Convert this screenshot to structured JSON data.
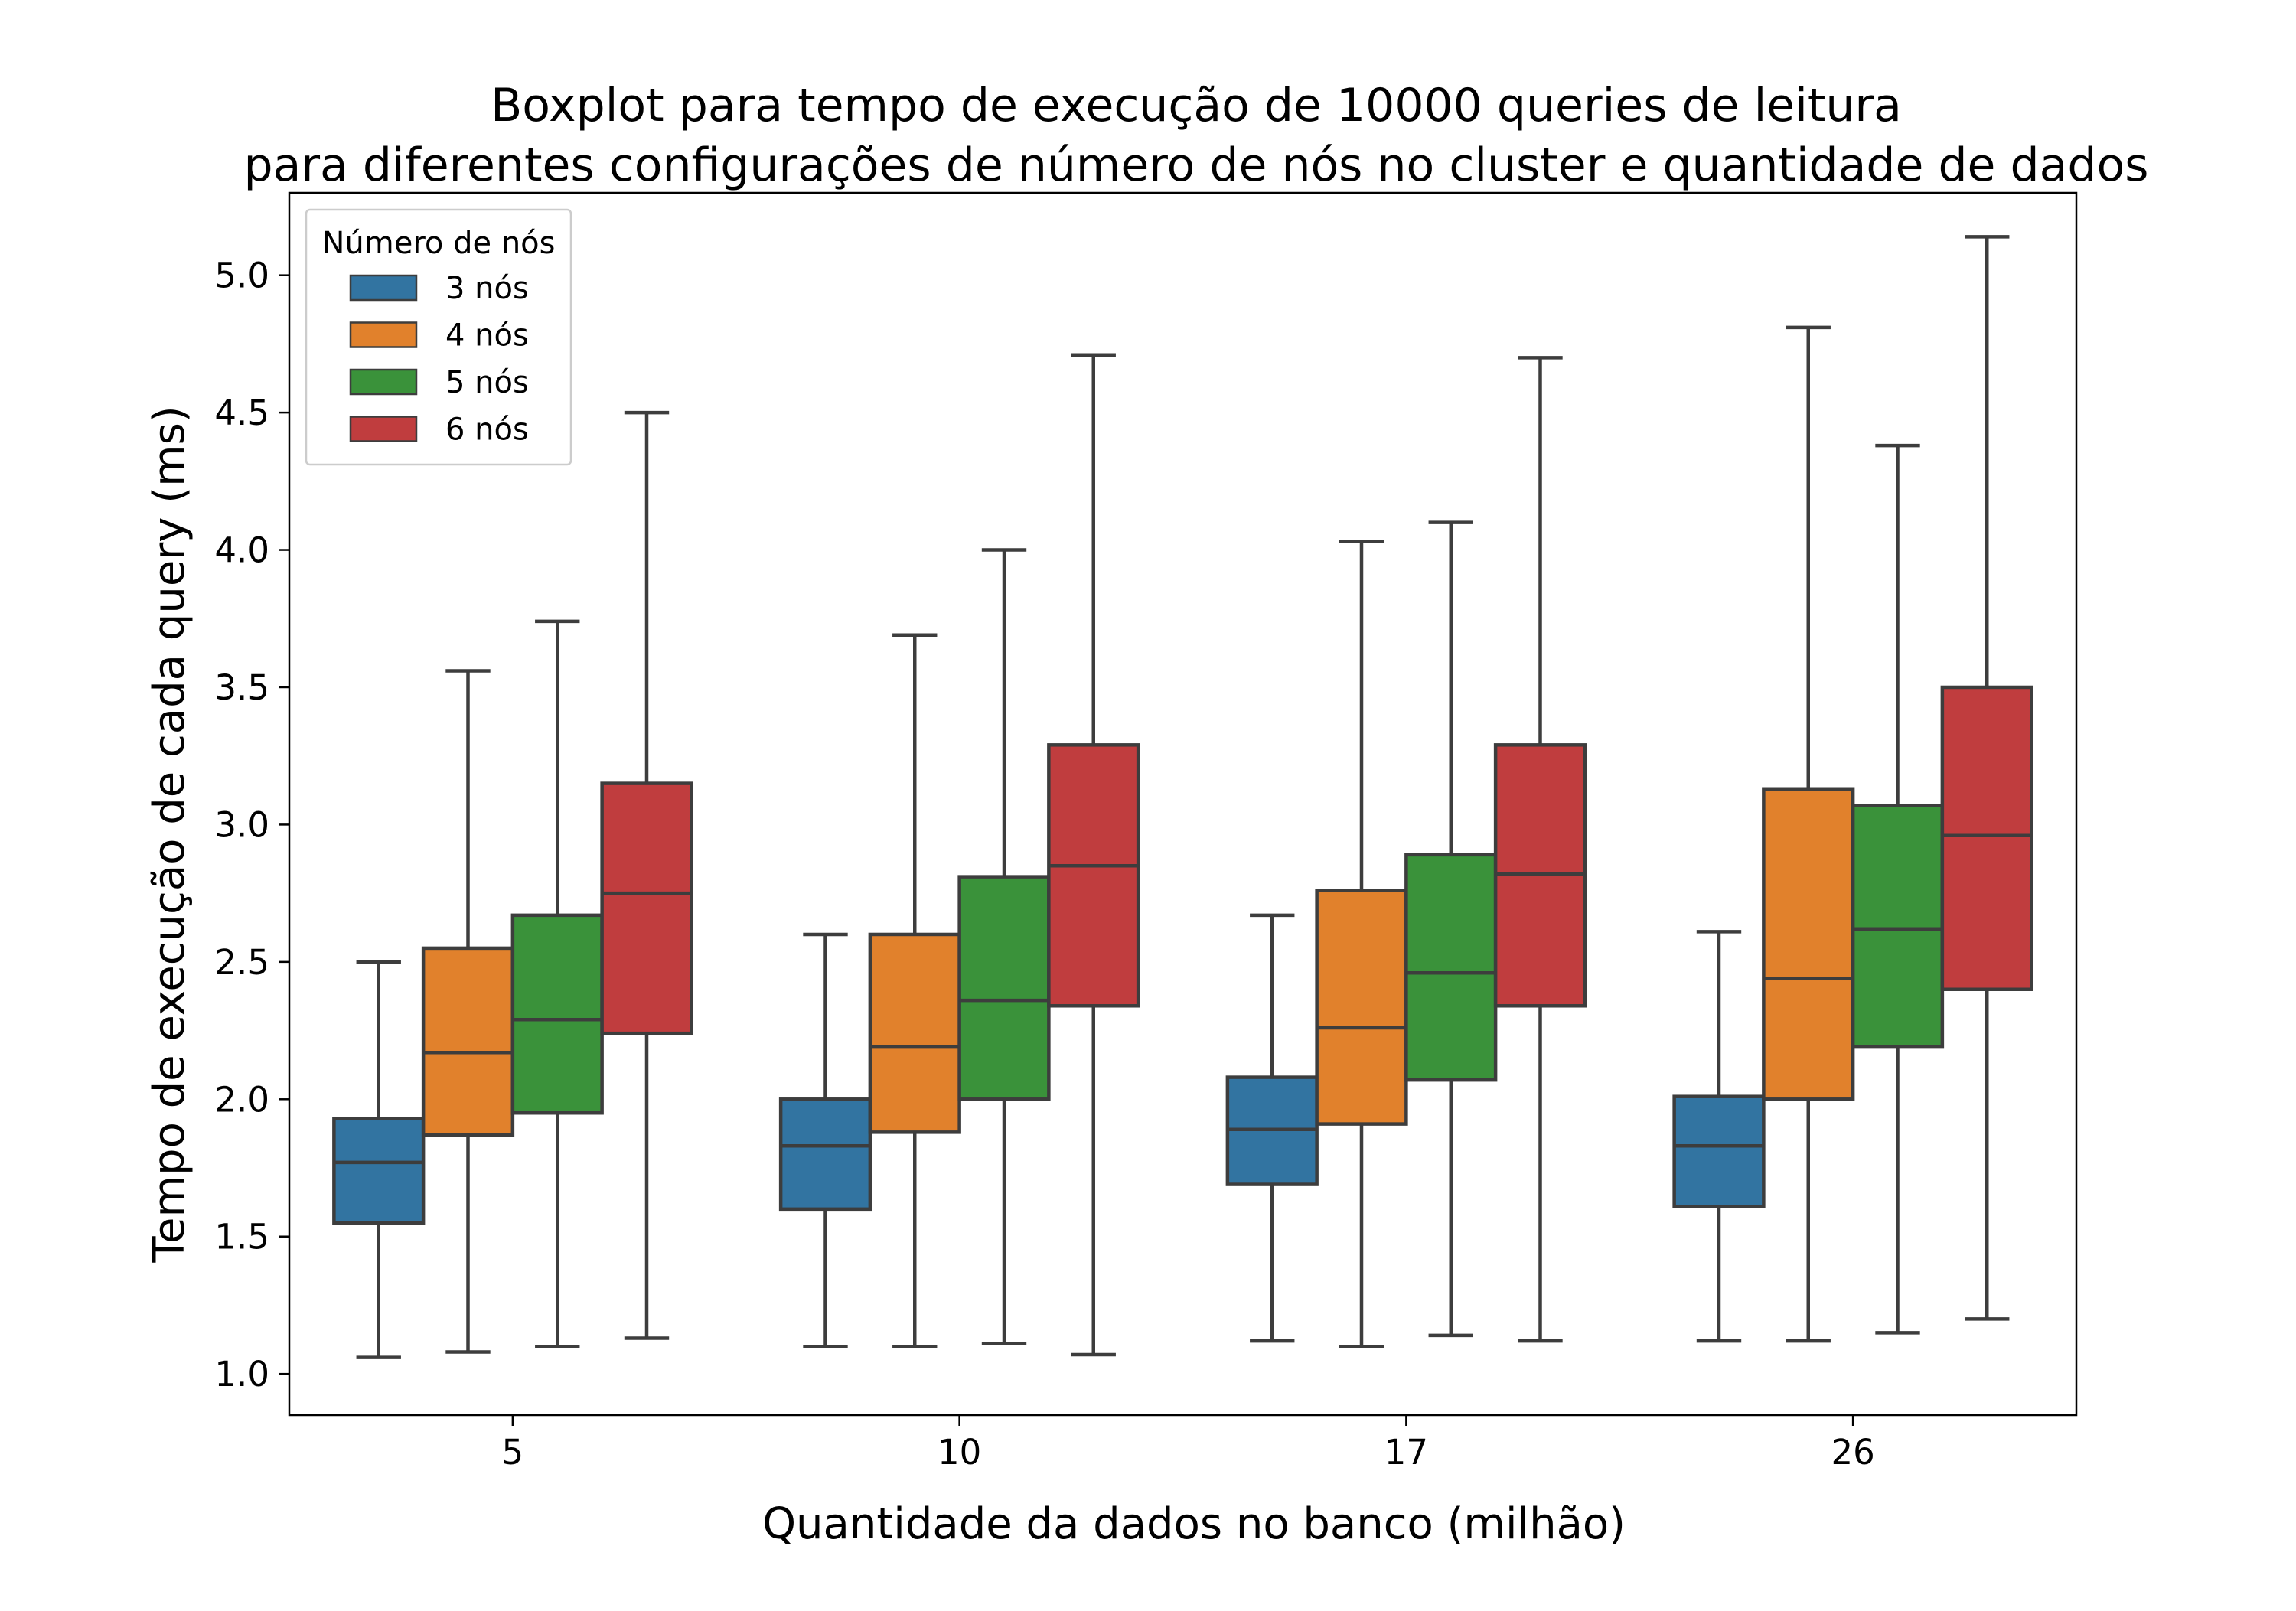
{
  "chart_data": {
    "type": "boxplot",
    "title_line1": "Boxplot para tempo de execução de 10000 queries de leitura",
    "title_line2": "para diferentes configurações de número de nós no cluster e quantidade de dados",
    "xlabel": "Quantidade da dados no banco (milhão)",
    "ylabel": "Tempo de execução de cada query (ms)",
    "categories": [
      "5",
      "10",
      "17",
      "26"
    ],
    "ylim": [
      0.85,
      5.3
    ],
    "yticks": [
      {
        "value": 1.0,
        "label": "1.0"
      },
      {
        "value": 1.5,
        "label": "1.5"
      },
      {
        "value": 2.0,
        "label": "2.0"
      },
      {
        "value": 2.5,
        "label": "2.5"
      },
      {
        "value": 3.0,
        "label": "3.0"
      },
      {
        "value": 3.5,
        "label": "3.5"
      },
      {
        "value": 4.0,
        "label": "4.0"
      },
      {
        "value": 4.5,
        "label": "4.5"
      },
      {
        "value": 5.0,
        "label": "5.0"
      }
    ],
    "grid": false,
    "legend": {
      "title": "Número de nós",
      "placement": "top-left"
    },
    "series": [
      {
        "name": "3 nós",
        "color": "#3274a1",
        "boxes": [
          {
            "min": 1.06,
            "q1": 1.55,
            "median": 1.77,
            "q3": 1.93,
            "max": 2.5
          },
          {
            "min": 1.1,
            "q1": 1.6,
            "median": 1.83,
            "q3": 2.0,
            "max": 2.6
          },
          {
            "min": 1.12,
            "q1": 1.69,
            "median": 1.89,
            "q3": 2.08,
            "max": 2.67
          },
          {
            "min": 1.12,
            "q1": 1.61,
            "median": 1.83,
            "q3": 2.01,
            "max": 2.61
          }
        ]
      },
      {
        "name": "4 nós",
        "color": "#e1812c",
        "boxes": [
          {
            "min": 1.08,
            "q1": 1.87,
            "median": 2.17,
            "q3": 2.55,
            "max": 3.56
          },
          {
            "min": 1.1,
            "q1": 1.88,
            "median": 2.19,
            "q3": 2.6,
            "max": 3.69
          },
          {
            "min": 1.1,
            "q1": 1.91,
            "median": 2.26,
            "q3": 2.76,
            "max": 4.03
          },
          {
            "min": 1.12,
            "q1": 2.0,
            "median": 2.44,
            "q3": 3.13,
            "max": 4.81
          }
        ]
      },
      {
        "name": "5 nós",
        "color": "#3a923a",
        "boxes": [
          {
            "min": 1.1,
            "q1": 1.95,
            "median": 2.29,
            "q3": 2.67,
            "max": 3.74
          },
          {
            "min": 1.11,
            "q1": 2.0,
            "median": 2.36,
            "q3": 2.81,
            "max": 4.0
          },
          {
            "min": 1.14,
            "q1": 2.07,
            "median": 2.46,
            "q3": 2.89,
            "max": 4.1
          },
          {
            "min": 1.15,
            "q1": 2.19,
            "median": 2.62,
            "q3": 3.07,
            "max": 4.38
          }
        ]
      },
      {
        "name": "6 nós",
        "color": "#c03d3e",
        "boxes": [
          {
            "min": 1.13,
            "q1": 2.24,
            "median": 2.75,
            "q3": 3.15,
            "max": 4.5
          },
          {
            "min": 1.07,
            "q1": 2.34,
            "median": 2.85,
            "q3": 3.29,
            "max": 4.71
          },
          {
            "min": 1.12,
            "q1": 2.34,
            "median": 2.82,
            "q3": 3.29,
            "max": 4.7
          },
          {
            "min": 1.2,
            "q1": 2.4,
            "median": 2.96,
            "q3": 3.5,
            "max": 5.14
          }
        ]
      }
    ]
  }
}
